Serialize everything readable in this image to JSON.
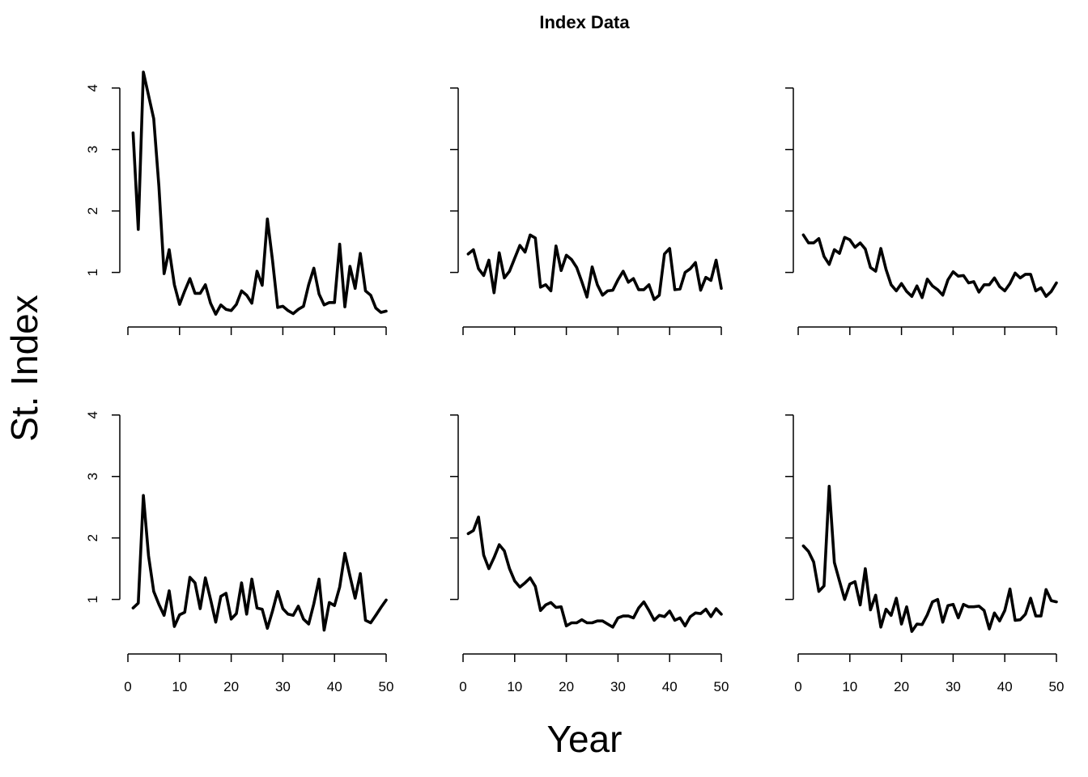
{
  "chart_data": {
    "type": "line",
    "title": "Index Data",
    "xlabel": "Year",
    "ylabel": "St. Index",
    "grid": false,
    "legend": "none",
    "line_color": "#000000",
    "x": [
      1,
      2,
      3,
      4,
      5,
      6,
      7,
      8,
      9,
      10,
      11,
      12,
      13,
      14,
      15,
      16,
      17,
      18,
      19,
      20,
      21,
      22,
      23,
      24,
      25,
      26,
      27,
      28,
      29,
      30,
      31,
      32,
      33,
      34,
      35,
      36,
      37,
      38,
      39,
      40,
      41,
      42,
      43,
      44,
      45,
      46,
      47,
      48,
      49,
      50
    ],
    "xlim": [
      0,
      50
    ],
    "x_ticks": [
      0,
      10,
      20,
      30,
      40,
      50
    ],
    "x_tick_labels": [
      "0",
      "10",
      "20",
      "30",
      "40",
      "50"
    ],
    "ylim": [
      0.31,
      4.26
    ],
    "y_ticks": [
      1,
      2,
      3,
      4
    ],
    "y_tick_labels": [
      "1",
      "2",
      "3",
      "4"
    ],
    "panels": [
      {
        "values": [
          3.27,
          1.7,
          4.26,
          3.88,
          3.5,
          2.4,
          0.98,
          1.37,
          0.8,
          0.48,
          0.7,
          0.9,
          0.66,
          0.66,
          0.8,
          0.5,
          0.32,
          0.47,
          0.4,
          0.38,
          0.48,
          0.7,
          0.63,
          0.5,
          1.02,
          0.79,
          1.87,
          1.2,
          0.43,
          0.45,
          0.38,
          0.33,
          0.4,
          0.45,
          0.8,
          1.07,
          0.65,
          0.47,
          0.51,
          0.51,
          1.46,
          0.44,
          1.1,
          0.74,
          1.31,
          0.7,
          0.63,
          0.42,
          0.35,
          0.37
        ]
      },
      {
        "values": [
          1.3,
          1.37,
          1.06,
          0.95,
          1.2,
          0.67,
          1.32,
          0.91,
          1.02,
          1.23,
          1.44,
          1.33,
          1.61,
          1.56,
          0.76,
          0.8,
          0.7,
          1.43,
          1.03,
          1.28,
          1.21,
          1.08,
          0.85,
          0.6,
          1.09,
          0.8,
          0.63,
          0.7,
          0.71,
          0.88,
          1.02,
          0.84,
          0.9,
          0.72,
          0.72,
          0.8,
          0.56,
          0.63,
          1.3,
          1.39,
          0.72,
          0.73,
          1.0,
          1.06,
          1.16,
          0.71,
          0.92,
          0.87,
          1.2,
          0.74
        ]
      },
      {
        "values": [
          1.61,
          1.48,
          1.48,
          1.55,
          1.26,
          1.13,
          1.37,
          1.31,
          1.57,
          1.53,
          1.41,
          1.48,
          1.38,
          1.08,
          1.02,
          1.39,
          1.05,
          0.8,
          0.7,
          0.82,
          0.69,
          0.61,
          0.78,
          0.59,
          0.89,
          0.78,
          0.72,
          0.63,
          0.88,
          1.01,
          0.94,
          0.95,
          0.83,
          0.85,
          0.68,
          0.8,
          0.8,
          0.91,
          0.77,
          0.7,
          0.82,
          0.99,
          0.91,
          0.97,
          0.97,
          0.7,
          0.75,
          0.61,
          0.69,
          0.83
        ]
      },
      {
        "values": [
          0.86,
          0.94,
          2.69,
          1.71,
          1.13,
          0.92,
          0.74,
          1.14,
          0.56,
          0.75,
          0.79,
          1.36,
          1.27,
          0.85,
          1.35,
          1.0,
          0.63,
          1.05,
          1.1,
          0.68,
          0.77,
          1.27,
          0.76,
          1.33,
          0.86,
          0.84,
          0.53,
          0.81,
          1.13,
          0.85,
          0.76,
          0.74,
          0.89,
          0.68,
          0.6,
          0.93,
          1.33,
          0.5,
          0.95,
          0.9,
          1.2,
          1.75,
          1.38,
          1.02,
          1.42,
          0.66,
          0.62,
          0.74,
          0.87,
          0.99
        ]
      },
      {
        "values": [
          2.07,
          2.12,
          2.34,
          1.72,
          1.5,
          1.68,
          1.89,
          1.79,
          1.5,
          1.3,
          1.2,
          1.27,
          1.35,
          1.21,
          0.82,
          0.91,
          0.95,
          0.87,
          0.88,
          0.57,
          0.62,
          0.62,
          0.67,
          0.62,
          0.62,
          0.65,
          0.65,
          0.6,
          0.55,
          0.7,
          0.73,
          0.73,
          0.7,
          0.86,
          0.96,
          0.82,
          0.66,
          0.74,
          0.72,
          0.81,
          0.66,
          0.7,
          0.57,
          0.72,
          0.78,
          0.77,
          0.84,
          0.72,
          0.85,
          0.76
        ]
      },
      {
        "values": [
          1.87,
          1.78,
          1.61,
          1.13,
          1.22,
          2.84,
          1.6,
          1.3,
          1.0,
          1.25,
          1.29,
          0.91,
          1.5,
          0.83,
          1.07,
          0.55,
          0.84,
          0.74,
          1.02,
          0.6,
          0.88,
          0.48,
          0.6,
          0.59,
          0.75,
          0.96,
          1.0,
          0.63,
          0.9,
          0.92,
          0.7,
          0.92,
          0.88,
          0.88,
          0.89,
          0.82,
          0.52,
          0.78,
          0.65,
          0.82,
          1.17,
          0.66,
          0.67,
          0.76,
          1.02,
          0.73,
          0.73,
          1.16,
          0.98,
          0.96
        ]
      }
    ]
  }
}
